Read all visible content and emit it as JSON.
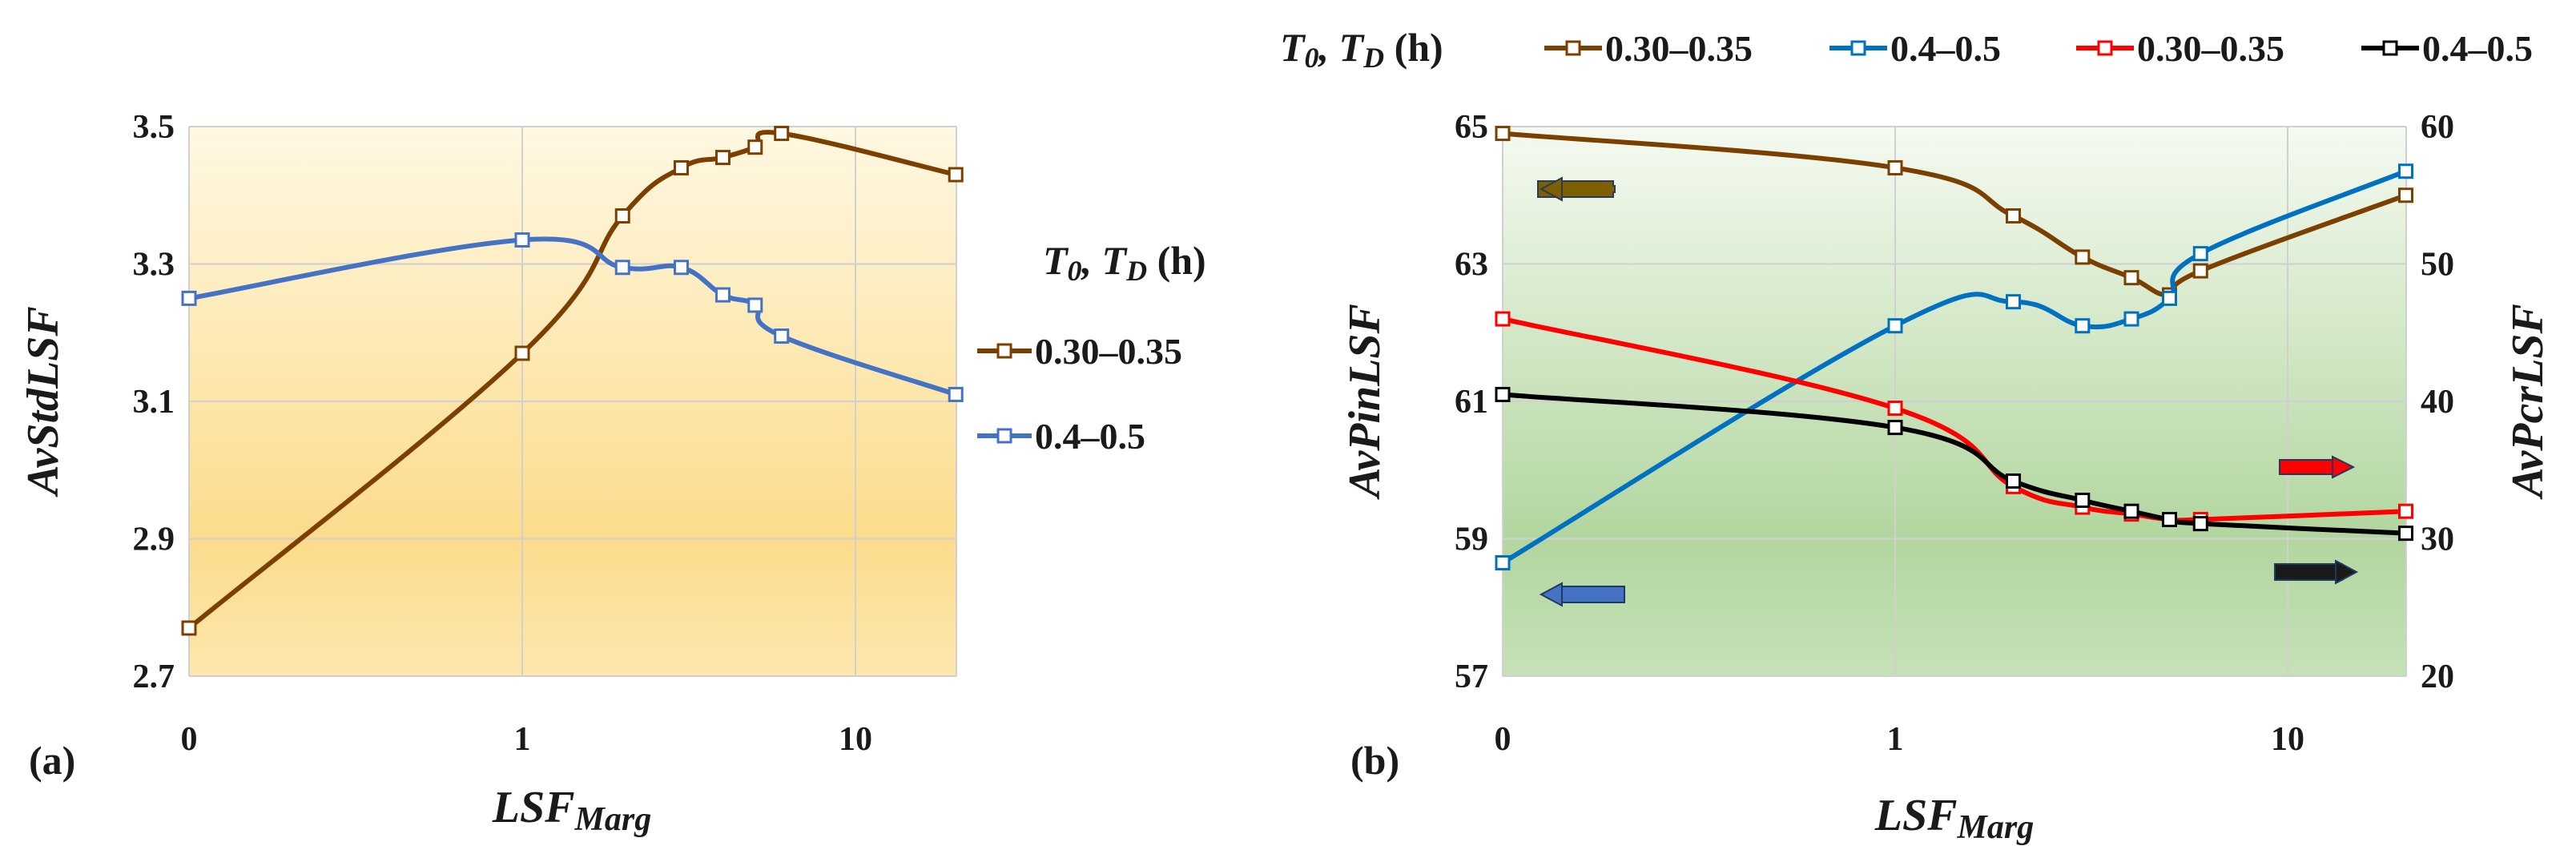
{
  "chart_data": [
    {
      "id": "a",
      "type": "line",
      "panel_label": "(a)",
      "xlabel": "LSFMarg",
      "xlabel_main": "LSF",
      "xlabel_sub": "Marg",
      "ylabel": "AvStdLSF",
      "x_ticks": [
        "0",
        "1",
        "10"
      ],
      "ylim": [
        2.7,
        3.5
      ],
      "y_ticks": [
        "2.7",
        "2.9",
        "3.1",
        "3.3",
        "3.5"
      ],
      "legend": {
        "placement": "right",
        "title": "T0, TD (h)"
      },
      "series": [
        {
          "name": "0.30–0.35",
          "color": "#7b3f00",
          "x": [
            0,
            1,
            2,
            3,
            4,
            5,
            6,
            20
          ],
          "values": [
            2.77,
            3.17,
            3.37,
            3.44,
            3.455,
            3.47,
            3.49,
            3.43
          ]
        },
        {
          "name": "0.4–0.5",
          "color": "#4472c4",
          "x": [
            0,
            1,
            2,
            3,
            4,
            5,
            6,
            20
          ],
          "values": [
            3.25,
            3.335,
            3.295,
            3.295,
            3.255,
            3.24,
            3.195,
            3.11
          ]
        }
      ]
    },
    {
      "id": "b",
      "type": "line",
      "panel_label": "(b)",
      "xlabel": "LSFMarg",
      "xlabel_main": "LSF",
      "xlabel_sub": "Marg",
      "ylabel": "AvPinLSF",
      "ylabel_right": "AvPcrLSF",
      "x_ticks": [
        "0",
        "1",
        "10"
      ],
      "ylim": [
        57,
        65
      ],
      "y_ticks": [
        "57",
        "59",
        "61",
        "63",
        "65"
      ],
      "ylim_right": [
        20,
        60
      ],
      "y_ticks_right": [
        "20",
        "30",
        "40",
        "50",
        "60"
      ],
      "legend": {
        "placement": "top",
        "title": "T0, TD (h)"
      },
      "series": [
        {
          "name": "0.30–0.35",
          "color": "#7b3f00",
          "axis": "left",
          "x": [
            0,
            1,
            2,
            3,
            4,
            5,
            6,
            20
          ],
          "values": [
            64.9,
            64.4,
            63.7,
            63.1,
            62.8,
            62.55,
            62.9,
            64.0
          ]
        },
        {
          "name": "0.4–0.5",
          "color": "#0070c0",
          "axis": "left",
          "x": [
            0,
            1,
            2,
            3,
            4,
            5,
            6,
            20
          ],
          "values": [
            58.65,
            62.1,
            62.45,
            62.1,
            62.2,
            62.5,
            63.15,
            64.35
          ]
        },
        {
          "name": "0.30–0.35",
          "color": "#ff0000",
          "axis": "right",
          "x": [
            0,
            1,
            2,
            3,
            4,
            5,
            6,
            20
          ],
          "values": [
            46.0,
            39.5,
            33.8,
            32.3,
            31.8,
            31.4,
            31.4,
            32.0
          ]
        },
        {
          "name": "0.4–0.5",
          "color": "#000000",
          "axis": "right",
          "x": [
            0,
            1,
            2,
            3,
            4,
            5,
            6,
            20
          ],
          "values": [
            40.5,
            38.1,
            34.2,
            32.8,
            32.0,
            31.4,
            31.1,
            30.4
          ]
        }
      ]
    }
  ]
}
